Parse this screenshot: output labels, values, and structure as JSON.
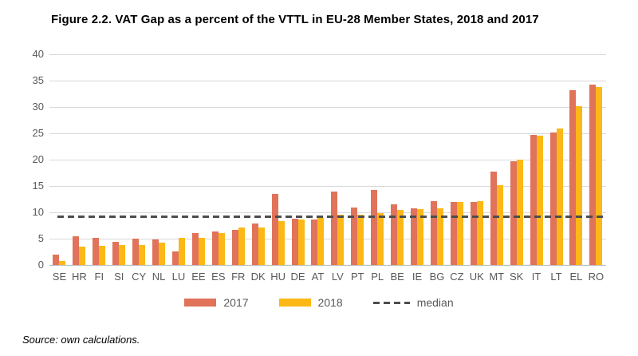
{
  "figure": {
    "title": "Figure 2.2. VAT Gap as a percent of the VTTL in EU-28 Member States, 2018 and 2017",
    "source": "Source: own calculations."
  },
  "colors": {
    "series_2017": "#E0735A",
    "series_2018": "#FBB817",
    "median_line": "#4D4D4D",
    "gridline": "#D9D9D9",
    "axis_text": "#595959"
  },
  "chart_data": {
    "type": "bar",
    "title": "Figure 2.2. VAT Gap as a percent of the VTTL in EU-28 Member States, 2018 and 2017",
    "xlabel": "",
    "ylabel": "",
    "ylim": [
      0,
      40
    ],
    "yticks": [
      0,
      5,
      10,
      15,
      20,
      25,
      30,
      35,
      40
    ],
    "grid": "horizontal",
    "legend_position": "bottom",
    "categories": [
      "SE",
      "HR",
      "FI",
      "SI",
      "CY",
      "NL",
      "LU",
      "EE",
      "ES",
      "FR",
      "DK",
      "HU",
      "DE",
      "AT",
      "LV",
      "PT",
      "PL",
      "BE",
      "IE",
      "BG",
      "CZ",
      "UK",
      "MT",
      "SK",
      "IT",
      "LT",
      "EL",
      "RO"
    ],
    "series": [
      {
        "name": "2017",
        "color": "#E0735A",
        "values": [
          2.0,
          5.5,
          5.1,
          4.4,
          5.0,
          4.8,
          2.6,
          6.0,
          6.4,
          6.7,
          7.9,
          13.5,
          8.8,
          8.6,
          13.9,
          10.9,
          14.3,
          11.5,
          10.8,
          12.2,
          12.0,
          12.0,
          17.7,
          19.7,
          24.7,
          25.2,
          33.2,
          34.3
        ]
      },
      {
        "name": "2018",
        "color": "#FBB817",
        "values": [
          0.7,
          3.5,
          3.6,
          3.8,
          3.8,
          4.2,
          5.1,
          5.2,
          6.0,
          7.1,
          7.2,
          8.4,
          8.6,
          9.0,
          9.5,
          9.6,
          9.9,
          10.4,
          10.6,
          10.8,
          12.0,
          12.2,
          15.1,
          20.0,
          24.5,
          25.9,
          30.1,
          33.8
        ]
      }
    ],
    "median": 9.2,
    "median_label": "median",
    "median_color": "#4D4D4D"
  }
}
